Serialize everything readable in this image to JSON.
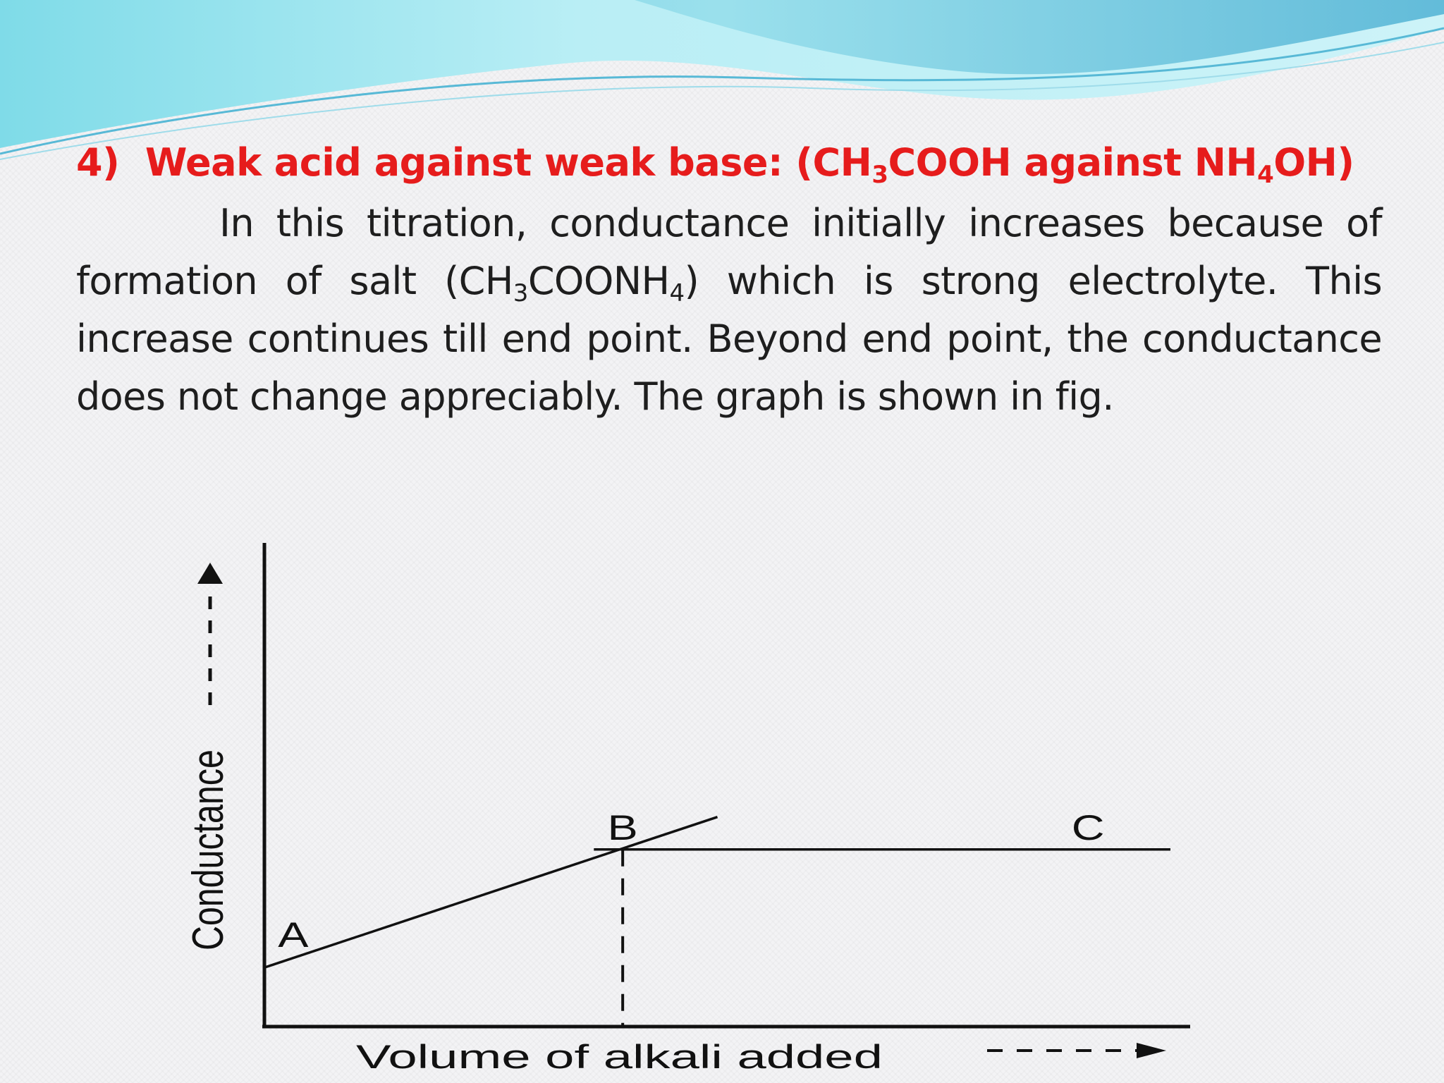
{
  "slide": {
    "heading": {
      "number": "4)",
      "text_before": "Weak acid against weak base: (CH",
      "sub_1": "3",
      "text_middle": "COOH against NH",
      "sub_2": "4",
      "text_after": "OH)"
    },
    "paragraph": {
      "part1": "In this titration, conductance initially increases because of formation of salt (CH",
      "sub_1": "3",
      "part2": "COONH",
      "sub_2": "4",
      "part3": ") which is strong electrolyte. This increase continues till end point. Beyond end point, the conductance does not change appreciably. The graph is shown in fig."
    },
    "colors": {
      "heading": "#e61c1c",
      "body_text": "#1e1e1e",
      "wave_light": "#a9e8f2",
      "wave_dark": "#4fb7d3"
    }
  },
  "chart_data": {
    "type": "line",
    "xlabel": "Volume of alkali added",
    "ylabel": "Conductance",
    "point_labels": [
      "A",
      "B",
      "C"
    ],
    "series": [
      {
        "values": [
          [
            0,
            1.0
          ],
          [
            5.5,
            3.55
          ]
        ]
      },
      {
        "values": [
          [
            4.0,
            3.0
          ],
          [
            11.0,
            3.0
          ]
        ]
      }
    ],
    "end_point": {
      "label": "B",
      "x": 4.35,
      "y": 3.0
    },
    "xlim": [
      0,
      11
    ],
    "ylim": [
      0,
      8
    ]
  }
}
